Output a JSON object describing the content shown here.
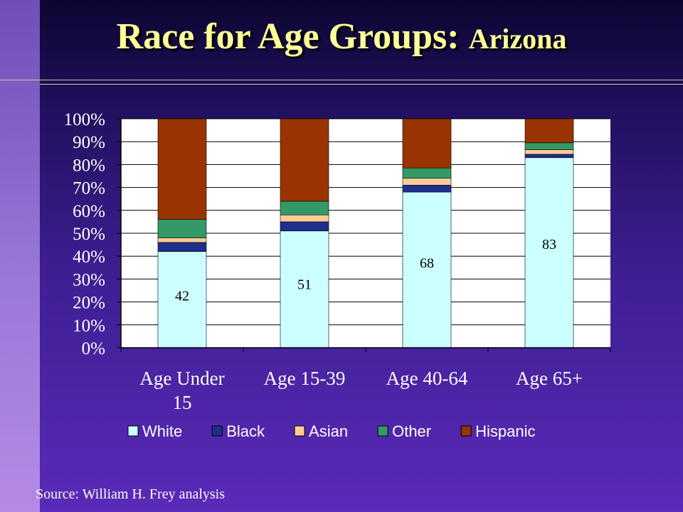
{
  "slide": {
    "title_main": "Race for Age Groups:",
    "title_sub": "Arizona",
    "source": "Source: William H. Frey analysis"
  },
  "chart_data": {
    "type": "bar",
    "stacked": true,
    "percent": true,
    "categories": [
      "Age Under 15",
      "Age 15-39",
      "Age 40-64",
      "Age 65+"
    ],
    "category_labels": [
      [
        "Age Under",
        "15"
      ],
      [
        "Age 15-39"
      ],
      [
        "Age 40-64"
      ],
      [
        "Age 65+"
      ]
    ],
    "series": [
      {
        "name": "White",
        "color": "#ccffff",
        "values": [
          42,
          51,
          68,
          83
        ]
      },
      {
        "name": "Black",
        "color": "#1f2f8c",
        "values": [
          4,
          4,
          3,
          1.5
        ]
      },
      {
        "name": "Asian",
        "color": "#ffcc99",
        "values": [
          2,
          3,
          3,
          2
        ]
      },
      {
        "name": "Other",
        "color": "#339966",
        "values": [
          8,
          6,
          4.5,
          3
        ]
      },
      {
        "name": "Hispanic",
        "color": "#993300",
        "values": [
          44,
          36,
          21.5,
          10.5
        ]
      }
    ],
    "data_labels": [
      "42",
      "51",
      "68",
      "83"
    ],
    "y_ticks": [
      "0%",
      "10%",
      "20%",
      "30%",
      "40%",
      "50%",
      "60%",
      "70%",
      "80%",
      "90%",
      "100%"
    ],
    "ylim": [
      0,
      100
    ],
    "legend_position": "bottom",
    "plot_background": "#ffffff"
  }
}
